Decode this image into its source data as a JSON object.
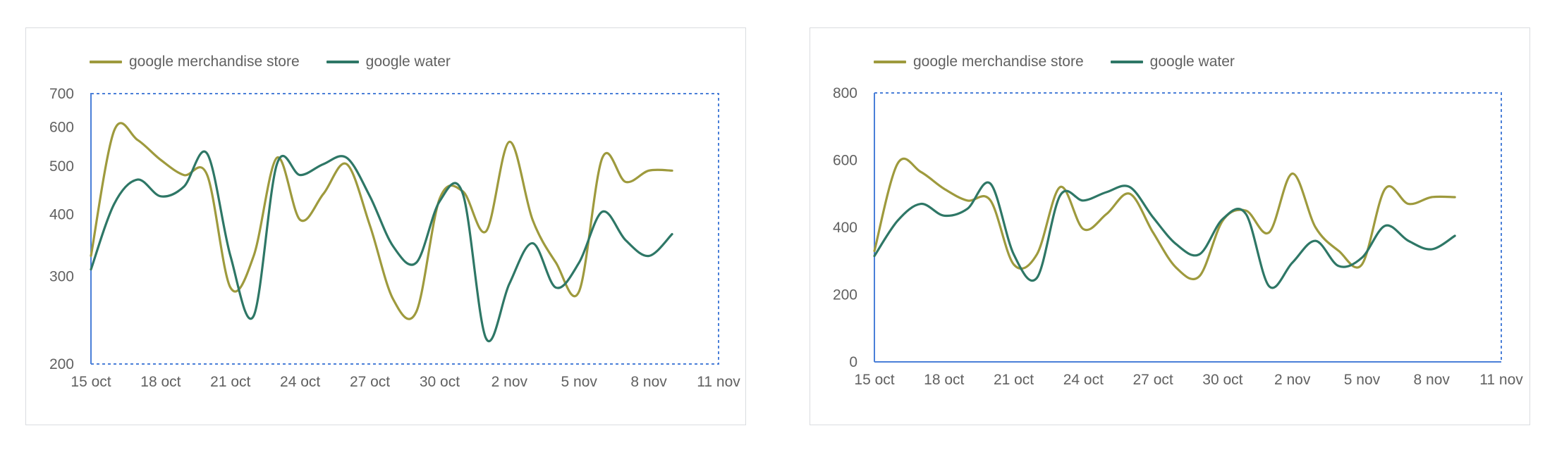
{
  "colors": {
    "merchandise": "#9e9a3d",
    "water": "#2e7766",
    "plot_border": "#4a7fd8"
  },
  "chart_data": [
    {
      "type": "line",
      "scale": "log",
      "x_tick_labels": [
        "15 oct",
        "18 oct",
        "21 oct",
        "24 oct",
        "27 oct",
        "30 oct",
        "2 nov",
        "5 nov",
        "8 nov",
        "11 nov"
      ],
      "y_ticks": [
        200,
        300,
        400,
        500,
        600,
        700
      ],
      "ylim": [
        200,
        700
      ],
      "series": [
        {
          "name": "google merchandise store",
          "color": "#9e9a3d",
          "x": [
            "15 oct",
            "16 oct",
            "17 oct",
            "18 oct",
            "19 oct",
            "20 oct",
            "21 oct",
            "22 oct",
            "23 oct",
            "24 oct",
            "25 oct",
            "26 oct",
            "27 oct",
            "28 oct",
            "29 oct",
            "30 oct",
            "31 oct",
            "1 nov",
            "2 nov",
            "3 nov",
            "4 nov",
            "5 nov",
            "6 nov",
            "7 nov",
            "8 nov",
            "9 nov"
          ],
          "values": [
            330,
            590,
            565,
            515,
            480,
            480,
            285,
            330,
            520,
            390,
            440,
            505,
            380,
            270,
            255,
            430,
            445,
            370,
            560,
            390,
            320,
            280,
            520,
            465,
            490,
            490
          ]
        },
        {
          "name": "google water",
          "color": "#2e7766",
          "x": [
            "15 oct",
            "16 oct",
            "17 oct",
            "18 oct",
            "19 oct",
            "20 oct",
            "21 oct",
            "22 oct",
            "23 oct",
            "24 oct",
            "25 oct",
            "26 oct",
            "27 oct",
            "28 oct",
            "29 oct",
            "30 oct",
            "31 oct",
            "1 nov",
            "2 nov",
            "3 nov",
            "4 nov",
            "5 nov",
            "6 nov",
            "7 nov",
            "8 nov",
            "9 nov"
          ],
          "values": [
            310,
            420,
            470,
            435,
            455,
            530,
            330,
            250,
            505,
            480,
            505,
            520,
            435,
            345,
            320,
            425,
            440,
            225,
            290,
            350,
            285,
            320,
            405,
            355,
            330,
            365
          ]
        }
      ]
    },
    {
      "type": "line",
      "scale": "linear",
      "x_tick_labels": [
        "15 oct",
        "18 oct",
        "21 oct",
        "24 oct",
        "27 oct",
        "30 oct",
        "2 nov",
        "5 nov",
        "8 nov",
        "11 nov"
      ],
      "y_ticks": [
        0,
        200,
        400,
        600,
        800
      ],
      "ylim": [
        0,
        800
      ],
      "series": [
        {
          "name": "google merchandise store",
          "color": "#9e9a3d",
          "x": [
            "15 oct",
            "16 oct",
            "17 oct",
            "18 oct",
            "19 oct",
            "20 oct",
            "21 oct",
            "22 oct",
            "23 oct",
            "24 oct",
            "25 oct",
            "26 oct",
            "27 oct",
            "28 oct",
            "29 oct",
            "30 oct",
            "31 oct",
            "1 nov",
            "2 nov",
            "3 nov",
            "4 nov",
            "5 nov",
            "6 nov",
            "7 nov",
            "8 nov",
            "9 nov"
          ],
          "values": [
            330,
            590,
            565,
            515,
            480,
            480,
            290,
            320,
            520,
            395,
            440,
            500,
            385,
            280,
            255,
            420,
            450,
            385,
            560,
            400,
            330,
            290,
            515,
            470,
            490,
            490
          ]
        },
        {
          "name": "google water",
          "color": "#2e7766",
          "x": [
            "15 oct",
            "16 oct",
            "17 oct",
            "18 oct",
            "19 oct",
            "20 oct",
            "21 oct",
            "22 oct",
            "23 oct",
            "24 oct",
            "25 oct",
            "26 oct",
            "27 oct",
            "28 oct",
            "29 oct",
            "30 oct",
            "31 oct",
            "1 nov",
            "2 nov",
            "3 nov",
            "4 nov",
            "5 nov",
            "6 nov",
            "7 nov",
            "8 nov",
            "9 nov"
          ],
          "values": [
            315,
            420,
            470,
            435,
            455,
            530,
            320,
            250,
            495,
            480,
            505,
            520,
            430,
            350,
            320,
            425,
            440,
            225,
            295,
            360,
            285,
            310,
            405,
            360,
            335,
            375
          ]
        }
      ]
    }
  ]
}
